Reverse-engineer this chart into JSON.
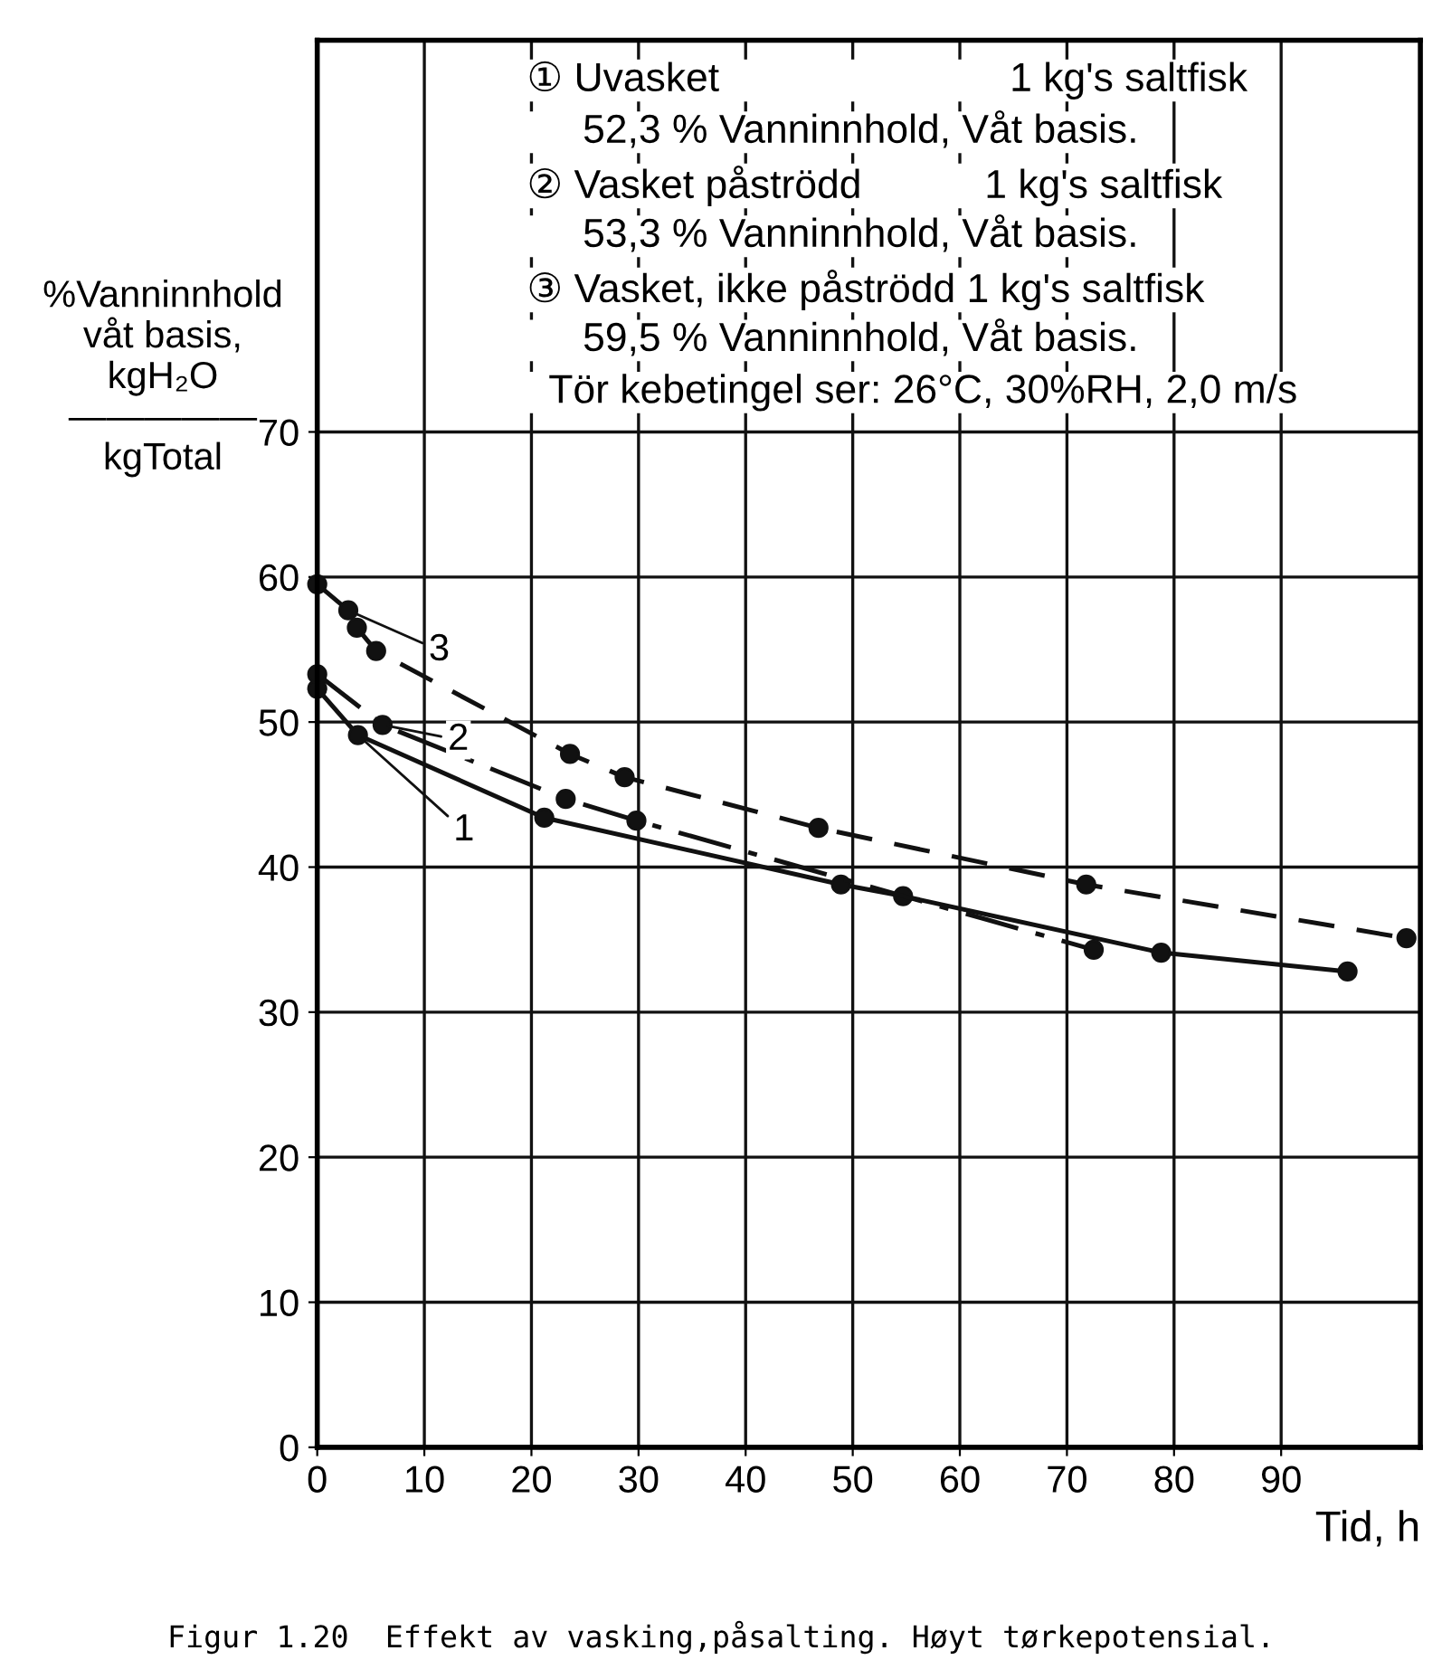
{
  "chart_data": {
    "type": "line",
    "title": "Figur 1.20  Effekt av vasking,påsalting. Høyt tørkepotensial.",
    "xlabel": "Tid, h",
    "ylabel": "%Vanninnhold\nvåt basis,\nkgH₂O\n―――――\nkgTotal",
    "xlim": [
      0,
      103
    ],
    "ylim": [
      0,
      97
    ],
    "xticks": [
      0,
      10,
      20,
      30,
      40,
      50,
      60,
      70,
      80,
      90
    ],
    "yticks": [
      0,
      10,
      20,
      30,
      40,
      50,
      60,
      70
    ],
    "grid": true,
    "marker": "circle",
    "legend": false,
    "series": [
      {
        "color": "#111111",
        "line_style": "solid",
        "x": [
          0,
          3.8,
          21.2,
          48.9,
          54.7,
          78.8,
          96.2
        ],
        "values": [
          52.3,
          49.1,
          43.4,
          38.8,
          38.0,
          34.1,
          32.8
        ]
      },
      {
        "color": "#111111",
        "line_style": "dashdot",
        "x": [
          0,
          6.1,
          23.2,
          29.8,
          72.5
        ],
        "values": [
          53.3,
          49.8,
          44.7,
          43.2,
          34.3
        ]
      },
      {
        "color": "#111111",
        "line_style": "dashed",
        "x": [
          0,
          2.9,
          3.7,
          5.5,
          23.6,
          28.7,
          46.8,
          71.8,
          101.7
        ],
        "values": [
          59.5,
          57.7,
          56.5,
          54.9,
          47.8,
          46.2,
          42.7,
          38.8,
          35.1
        ]
      }
    ],
    "annotations": [
      "① Uvasket                          1 kg's saltfisk",
      "     52,3 % Vanninnhold, Våt basis.",
      "② Vasket påströdd           1 kg's saltfisk",
      "     53,3 % Vanninnhold, Våt basis.",
      "③ Vasket, ikke påströdd 1 kg's saltfisk",
      "     59,5 % Vanninnhold, Våt basis.",
      "  Tör kebetingel ser: 26°C, 30%RH, 2,0 m/s",
      {
        "text": "1",
        "x": 3.8,
        "y": 49.1
      },
      {
        "text": "2",
        "x": 6.1,
        "y": 49.8
      },
      {
        "text": "3",
        "x": 2.9,
        "y": 57.7
      }
    ]
  }
}
